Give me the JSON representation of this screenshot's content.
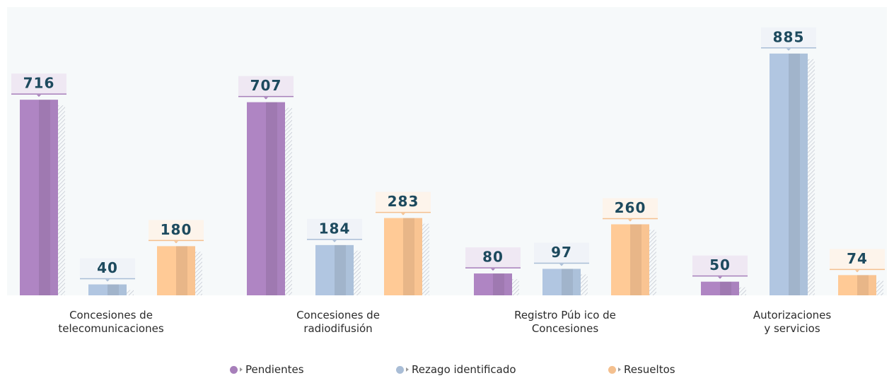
{
  "chart_data": {
    "type": "bar",
    "categories": [
      "Concesiones de\ntelecomunicaciones",
      "Concesiones de\nradiodifusión",
      "Registro Púb ico de\nConcesiones",
      "Autorizaciones\ny servicios"
    ],
    "series": [
      {
        "name": "Pendientes",
        "color": "#a77fba",
        "values": [
          716,
          707,
          80,
          50
        ]
      },
      {
        "name": "Rezago identificado",
        "color": "#a9bdd6",
        "values": [
          40,
          184,
          97,
          885
        ]
      },
      {
        "name": "Resueltos",
        "color": "#f4c08f",
        "values": [
          180,
          283,
          260,
          74
        ]
      }
    ],
    "ylim": [
      0,
      1050
    ]
  }
}
